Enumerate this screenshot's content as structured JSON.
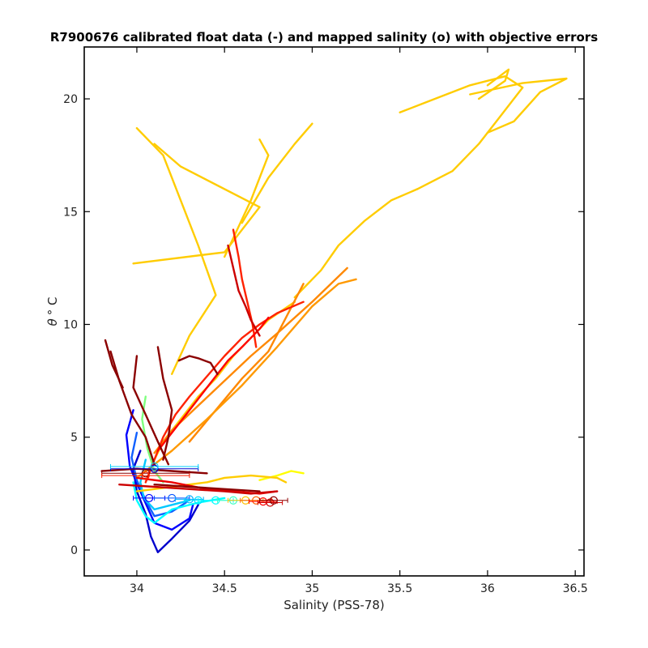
{
  "chart_data": {
    "type": "line",
    "title": "R7900676 calibrated float data (-) and mapped salinity (o) with objective errors",
    "xlabel": "Salinity (PSS-78)",
    "ylabel_symbol": "θ",
    "ylabel_unit": "° C",
    "xlim": [
      33.7,
      36.55
    ],
    "ylim": [
      -1.15,
      22.3
    ],
    "x_ticks": [
      34,
      34.5,
      35,
      35.5,
      36,
      36.5
    ],
    "x_tick_labels": [
      "34",
      "34.5",
      "35",
      "35.5",
      "36",
      "36.5"
    ],
    "y_ticks": [
      0,
      5,
      10,
      15,
      20
    ],
    "y_tick_labels": [
      "0",
      "5",
      "10",
      "15",
      "20"
    ],
    "grid": false,
    "legend": "none",
    "colormap": "jet",
    "series": [
      {
        "color": "#0000cc",
        "x": [
          34.02,
          33.98,
          34.0,
          34.05,
          34.08,
          34.12,
          34.2,
          34.3,
          34.35
        ],
        "y": [
          4.4,
          3.6,
          2.6,
          1.6,
          0.6,
          -0.1,
          0.5,
          1.3,
          2.0
        ]
      },
      {
        "color": "#0000ff",
        "x": [
          33.98,
          33.94,
          33.96,
          34.02,
          34.1,
          34.2,
          34.3,
          34.32
        ],
        "y": [
          6.2,
          5.1,
          3.7,
          2.6,
          1.2,
          0.9,
          1.4,
          2.0
        ]
      },
      {
        "color": "#1060ff",
        "x": [
          34.0,
          33.97,
          34.0,
          34.05,
          34.1,
          34.2,
          34.28
        ],
        "y": [
          5.2,
          4.1,
          3.1,
          2.2,
          1.5,
          1.7,
          2.1
        ]
      },
      {
        "color": "#00c8ff",
        "x": [
          34.05,
          34.02,
          34.04,
          34.1,
          34.2,
          34.3
        ],
        "y": [
          4.0,
          3.0,
          2.3,
          1.8,
          2.0,
          2.2
        ]
      },
      {
        "color": "#00ffff",
        "x": [
          33.98,
          34.0,
          34.05,
          34.1,
          34.2,
          34.35,
          34.5
        ],
        "y": [
          3.0,
          2.2,
          1.5,
          1.2,
          1.8,
          2.1,
          2.3
        ]
      },
      {
        "color": "#7fff7f",
        "x": [
          34.05,
          34.03,
          34.06,
          34.1,
          34.15
        ],
        "y": [
          6.8,
          5.8,
          4.5,
          3.5,
          3.0
        ]
      },
      {
        "color": "#ffff00",
        "x": [
          34.7,
          34.8,
          34.88,
          34.95
        ],
        "y": [
          3.1,
          3.3,
          3.5,
          3.4
        ]
      },
      {
        "color": "#ffcc00",
        "x": [
          34.0,
          34.2,
          34.4,
          34.5,
          34.65,
          34.8,
          34.85
        ],
        "y": [
          2.6,
          2.8,
          3.0,
          3.2,
          3.3,
          3.2,
          3.0
        ]
      },
      {
        "color": "#ffcc00",
        "x": [
          34.1,
          34.15,
          34.25,
          34.35,
          34.45,
          34.55,
          34.65,
          34.75,
          34.9
        ],
        "y": [
          4.0,
          4.8,
          5.8,
          6.8,
          7.6,
          8.6,
          9.4,
          10.2,
          11.0
        ]
      },
      {
        "color": "#ffcc00",
        "x": [
          33.98,
          34.5,
          34.7,
          34.25,
          34.1
        ],
        "y": [
          12.7,
          13.2,
          15.2,
          17.0,
          18.0
        ]
      },
      {
        "color": "#ffcc00",
        "x": [
          34.2,
          34.3,
          34.45,
          34.35,
          34.25,
          34.15,
          34.0
        ],
        "y": [
          7.8,
          9.5,
          11.3,
          13.5,
          15.5,
          17.5,
          18.7
        ]
      },
      {
        "color": "#ffcc00",
        "x": [
          34.5,
          34.65,
          34.75,
          34.7
        ],
        "y": [
          13.0,
          15.5,
          17.5,
          18.2
        ]
      },
      {
        "color": "#ffcc00",
        "x": [
          34.6,
          34.75,
          34.9,
          35.0
        ],
        "y": [
          14.5,
          16.5,
          18.0,
          18.9
        ]
      },
      {
        "color": "#ffcc00",
        "x": [
          34.9,
          35.05,
          35.15,
          35.3,
          35.45,
          35.6
        ],
        "y": [
          11.2,
          12.4,
          13.5,
          14.6,
          15.5,
          16.0
        ]
      },
      {
        "color": "#ffcc00",
        "x": [
          35.6,
          35.8,
          35.95,
          36.05,
          36.2,
          36.1,
          35.9,
          35.7,
          35.5
        ],
        "y": [
          16.0,
          16.8,
          18.0,
          19.0,
          20.5,
          21.0,
          20.6,
          20.0,
          19.4
        ]
      },
      {
        "color": "#ffcc00",
        "x": [
          35.9,
          36.2,
          36.45,
          36.3,
          36.15,
          36.0
        ],
        "y": [
          20.2,
          20.7,
          20.9,
          20.3,
          19.0,
          18.5
        ]
      },
      {
        "color": "#ffcc00",
        "x": [
          35.95,
          36.1,
          36.12,
          36.0
        ],
        "y": [
          20.0,
          20.8,
          21.3,
          20.6
        ]
      },
      {
        "color": "#ff8800",
        "x": [
          34.1,
          34.2,
          34.35,
          34.5,
          34.65,
          34.8,
          35.0,
          35.2
        ],
        "y": [
          4.3,
          5.3,
          6.4,
          7.5,
          8.6,
          9.6,
          11.0,
          12.5
        ]
      },
      {
        "color": "#ff8800",
        "x": [
          34.3,
          34.45,
          34.6,
          34.75,
          34.85,
          34.95
        ],
        "y": [
          4.8,
          6.2,
          7.6,
          8.8,
          10.3,
          11.8
        ]
      },
      {
        "color": "#ff9900",
        "x": [
          34.0,
          34.2,
          34.4,
          34.6,
          34.8,
          35.0,
          35.15,
          35.25
        ],
        "y": [
          3.2,
          4.4,
          5.8,
          7.3,
          9.0,
          10.8,
          11.8,
          12.0
        ]
      },
      {
        "color": "#ff2200",
        "x": [
          34.05,
          34.1,
          34.15,
          34.22,
          34.3,
          34.4,
          34.5,
          34.6,
          34.7,
          34.8,
          34.95
        ],
        "y": [
          3.0,
          4.0,
          5.0,
          6.0,
          6.8,
          7.7,
          8.6,
          9.4,
          10.0,
          10.5,
          11.0
        ]
      },
      {
        "color": "#ff2200",
        "x": [
          34.55,
          34.58,
          34.6,
          34.63,
          34.66,
          34.68
        ],
        "y": [
          14.2,
          13.0,
          12.0,
          11.0,
          10.0,
          9.0
        ]
      },
      {
        "color": "#ff0000",
        "x": [
          34.12,
          34.25,
          34.4,
          34.52,
          34.6,
          34.7,
          34.75
        ],
        "y": [
          4.4,
          5.7,
          7.2,
          8.4,
          9.0,
          9.8,
          10.3
        ]
      },
      {
        "color": "#ee0000",
        "x": [
          34.0,
          34.2,
          34.4,
          34.55,
          34.7,
          34.8
        ],
        "y": [
          3.2,
          3.0,
          2.7,
          2.6,
          2.5,
          2.6
        ]
      },
      {
        "color": "#cc0000",
        "x": [
          34.52,
          34.55,
          34.58,
          34.62,
          34.65,
          34.7
        ],
        "y": [
          13.5,
          12.5,
          11.5,
          10.8,
          10.2,
          9.5
        ]
      },
      {
        "color": "#cc0000",
        "x": [
          33.9,
          34.1,
          34.3,
          34.5,
          34.65,
          34.8
        ],
        "y": [
          2.9,
          2.8,
          2.7,
          2.6,
          2.5,
          2.6
        ]
      },
      {
        "color": "#8b0000",
        "x": [
          33.85,
          33.9,
          33.97,
          34.05,
          34.1
        ],
        "y": [
          8.8,
          7.5,
          6.0,
          5.0,
          3.8
        ]
      },
      {
        "color": "#8b0000",
        "x": [
          34.0,
          33.98,
          34.05,
          34.12,
          34.18
        ],
        "y": [
          8.6,
          7.2,
          6.0,
          4.8,
          3.8
        ]
      },
      {
        "color": "#8b0000",
        "x": [
          34.12,
          34.15,
          34.2,
          34.18,
          34.15
        ],
        "y": [
          9.0,
          7.6,
          6.2,
          5.0,
          4.0
        ]
      },
      {
        "color": "#8b0000",
        "x": [
          34.24,
          34.3,
          34.35,
          34.42,
          34.46
        ],
        "y": [
          8.4,
          8.6,
          8.5,
          8.3,
          7.8
        ]
      },
      {
        "color": "#8b0000",
        "x": [
          33.82,
          33.86,
          33.92
        ],
        "y": [
          9.3,
          8.2,
          7.2
        ]
      },
      {
        "color": "#8b0000",
        "x": [
          33.8,
          34.0,
          34.2,
          34.4
        ],
        "y": [
          3.5,
          3.6,
          3.5,
          3.4
        ]
      },
      {
        "color": "#8b0000",
        "x": [
          34.1,
          34.3,
          34.5,
          34.7
        ],
        "y": [
          2.9,
          2.8,
          2.7,
          2.6
        ]
      }
    ],
    "mapped_points": [
      {
        "x": 34.07,
        "y": 2.3,
        "err": 0.09,
        "color": "#0000ff"
      },
      {
        "x": 34.2,
        "y": 2.3,
        "err": 0.1,
        "color": "#0050ff"
      },
      {
        "x": 34.3,
        "y": 2.25,
        "err": 0.08,
        "color": "#00b0ff"
      },
      {
        "x": 34.35,
        "y": 2.2,
        "err": 0.08,
        "color": "#00e0ff"
      },
      {
        "x": 34.45,
        "y": 2.2,
        "err": 0.1,
        "color": "#00ffff"
      },
      {
        "x": 34.55,
        "y": 2.2,
        "err": 0.09,
        "color": "#40ffc0"
      },
      {
        "x": 34.62,
        "y": 2.2,
        "err": 0.1,
        "color": "#ffc000"
      },
      {
        "x": 34.68,
        "y": 2.2,
        "err": 0.09,
        "color": "#ff6000"
      },
      {
        "x": 34.72,
        "y": 2.15,
        "err": 0.08,
        "color": "#ff0000"
      },
      {
        "x": 34.76,
        "y": 2.1,
        "err": 0.07,
        "color": "#cc0000"
      },
      {
        "x": 34.78,
        "y": 2.2,
        "err": 0.08,
        "color": "#8b0000"
      },
      {
        "x": 34.1,
        "y": 3.6,
        "err": 0.25,
        "color": "#0000cc"
      },
      {
        "x": 34.1,
        "y": 3.7,
        "err": 0.25,
        "color": "#00d0ff"
      },
      {
        "x": 34.05,
        "y": 3.4,
        "err": 0.25,
        "color": "#8b0000"
      },
      {
        "x": 34.05,
        "y": 3.3,
        "err": 0.25,
        "color": "#ff2200"
      }
    ]
  }
}
